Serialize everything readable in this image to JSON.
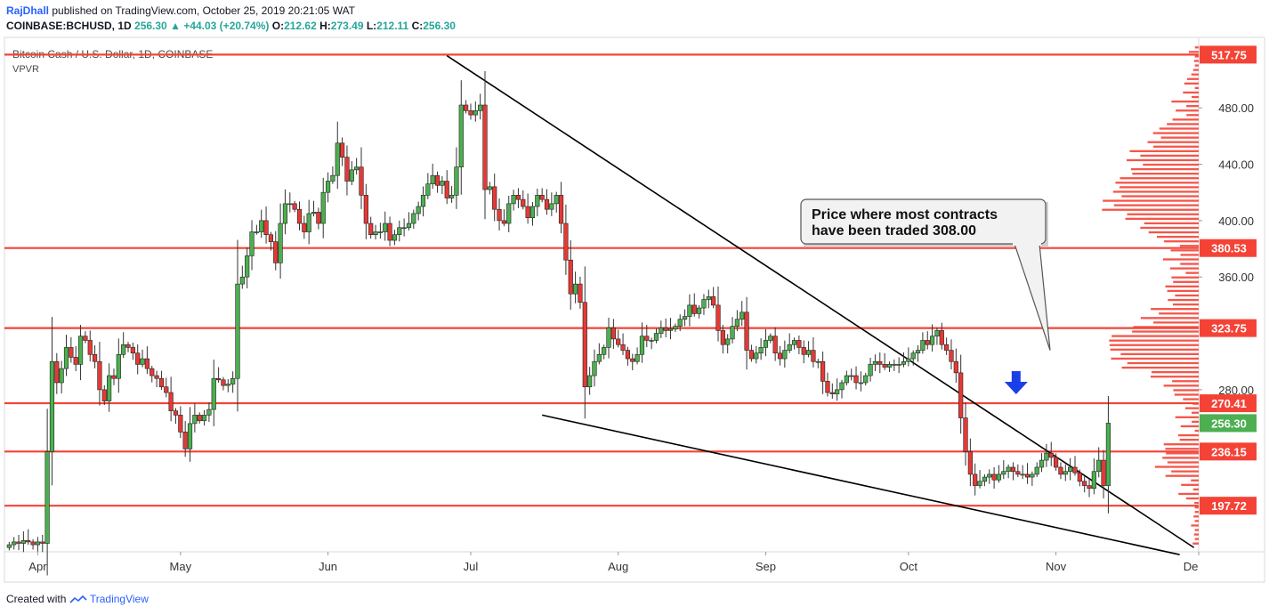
{
  "header": {
    "author": "RajDhall",
    "published": "published on TradingView.com, October 25, 2019 20:21:05 WAT",
    "symbol": "COINBASE:BCHUSD, 1D",
    "last": "256.30",
    "change_arrow": "▲",
    "change": "+44.03 (+20.74%)",
    "o_label": "O:",
    "o": "212.62",
    "h_label": "H:",
    "h": "273.49",
    "l_label": "L:",
    "l": "212.11",
    "c_label": "C:",
    "c": "256.30"
  },
  "footer": {
    "created_with": "Created with",
    "brand": "TradingView"
  },
  "colors": {
    "up": "#4caf50",
    "down": "#e53935",
    "level_line": "#f44336",
    "volume_profile": "#f44336",
    "arrow": "#1a3fe6"
  },
  "chart_data": {
    "type": "candlestick",
    "title": "Bitcoin Cash / U.S. Dollar, 1D, COINBASE",
    "subtitle": "VPVR",
    "x_ticks": [
      "Apr",
      "May",
      "Jun",
      "Jul",
      "Aug",
      "Sep",
      "Oct",
      "Nov",
      "De"
    ],
    "ylim": [
      165,
      530
    ],
    "y_ticks": [
      "480.00",
      "440.00",
      "400.00",
      "360.00",
      "280.00"
    ],
    "horizontal_levels": [
      "517.75",
      "380.53",
      "323.75",
      "270.41",
      "236.15",
      "197.72"
    ],
    "last_price_label": "256.30",
    "annotation": "Price where most contracts have been traded 308.00",
    "annotation_lines": [
      "Price where most contracts",
      "have been traded 308.00"
    ],
    "point_of_control": 308.0,
    "closes": [
      170,
      172,
      171,
      173,
      172,
      170,
      172,
      171,
      236,
      300,
      285,
      295,
      310,
      303,
      298,
      318,
      315,
      305,
      300,
      280,
      272,
      290,
      288,
      305,
      312,
      310,
      306,
      298,
      302,
      295,
      290,
      288,
      282,
      278,
      265,
      262,
      250,
      238,
      256,
      262,
      258,
      262,
      266,
      288,
      287,
      283,
      284,
      288,
      355,
      360,
      375,
      392,
      392,
      400,
      390,
      385,
      370,
      398,
      412,
      412,
      408,
      398,
      392,
      405,
      406,
      398,
      420,
      428,
      432,
      455,
      445,
      428,
      436,
      438,
      418,
      398,
      390,
      392,
      392,
      398,
      386,
      390,
      395,
      395,
      398,
      405,
      410,
      418,
      426,
      432,
      425,
      428,
      416,
      418,
      438,
      482,
      478,
      475,
      478,
      482,
      422,
      424,
      408,
      400,
      398,
      412,
      418,
      415,
      410,
      402,
      410,
      418,
      415,
      408,
      412,
      418,
      398,
      372,
      348,
      355,
      342,
      282,
      290,
      300,
      305,
      310,
      324,
      316,
      312,
      308,
      302,
      300,
      305,
      318,
      315,
      315,
      320,
      324,
      322,
      323,
      325,
      330,
      332,
      340,
      334,
      338,
      344,
      346,
      340,
      322,
      312,
      316,
      325,
      330,
      335,
      308,
      302,
      306,
      310,
      315,
      318,
      306,
      302,
      308,
      312,
      315,
      310,
      305,
      308,
      300,
      300,
      286,
      278,
      277,
      280,
      285,
      290,
      290,
      285,
      285,
      290,
      298,
      300,
      298,
      296,
      298,
      298,
      298,
      300,
      302,
      306,
      308,
      315,
      312,
      318,
      322,
      312,
      308,
      300,
      292,
      260,
      236,
      220,
      212,
      215,
      218,
      220,
      216,
      220,
      222,
      225,
      222,
      220,
      220,
      218,
      220,
      225,
      230,
      235,
      232,
      225,
      220,
      222,
      225,
      221,
      215,
      212,
      210,
      222,
      230,
      212,
      256.3
    ],
    "x_start": "2019-03-25",
    "x_end": "2019-12-01"
  }
}
